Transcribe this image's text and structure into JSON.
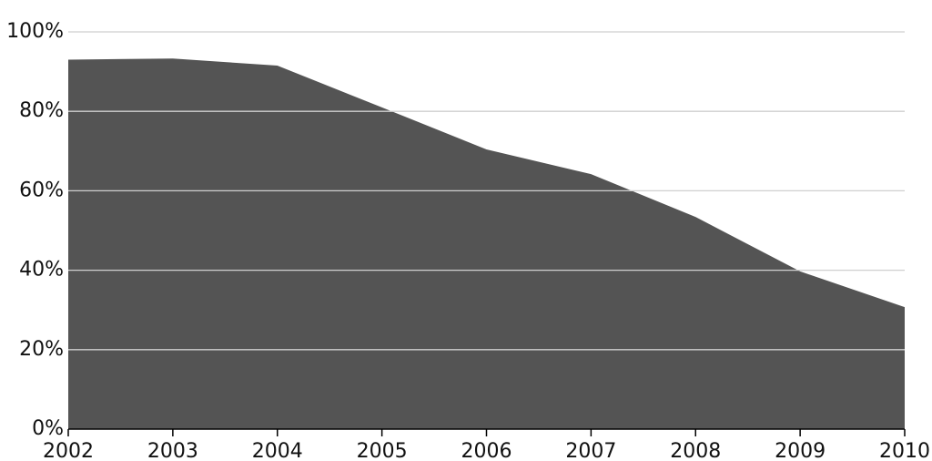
{
  "chart_data": {
    "type": "area",
    "color": "#545454",
    "x": [
      2002,
      2003,
      2004,
      2005,
      2006,
      2007,
      2008,
      2009,
      2010
    ],
    "values": [
      93,
      93.3,
      91.5,
      81,
      70.4,
      64.2,
      53.4,
      39.7,
      30.7
    ],
    "xlim": [
      2002,
      2010
    ],
    "xticks": [
      2002,
      2003,
      2004,
      2005,
      2006,
      2007,
      2008,
      2009,
      2010
    ],
    "ylim": [
      0,
      100
    ],
    "yticks": [
      {
        "value": 0,
        "label": "0%"
      },
      {
        "value": 20,
        "label": "20%"
      },
      {
        "value": 40,
        "label": "40%"
      },
      {
        "value": 60,
        "label": "60%"
      },
      {
        "value": 80,
        "label": "80%"
      },
      {
        "value": 100,
        "label": "100%"
      }
    ],
    "grid": true
  }
}
